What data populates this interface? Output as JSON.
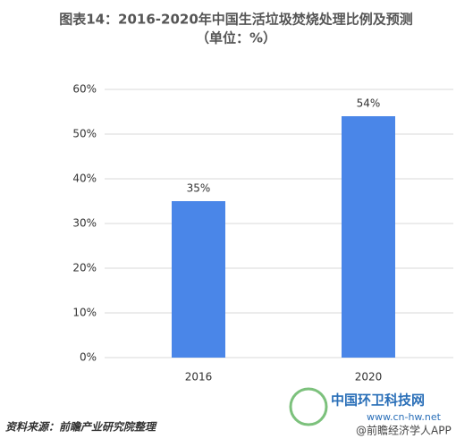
{
  "chart_data": {
    "type": "bar",
    "title": "图表14：2016-2020年中国生活垃圾焚烧处理比例及预测",
    "subtitle": "（单位：%）",
    "categories": [
      "2016",
      "2020"
    ],
    "values": [
      35,
      54
    ],
    "value_labels": [
      "35%",
      "54%"
    ],
    "color": "#4a86e8",
    "ylim": [
      0,
      60
    ],
    "yticks": [
      {
        "value": 0,
        "label": "0%"
      },
      {
        "value": 10,
        "label": "10%"
      },
      {
        "value": 20,
        "label": "20%"
      },
      {
        "value": 30,
        "label": "30%"
      },
      {
        "value": 40,
        "label": "40%"
      },
      {
        "value": 50,
        "label": "50%"
      },
      {
        "value": 60,
        "label": "60%"
      }
    ],
    "grid": true,
    "source": "资料来源：前瞻产业研究院整理",
    "annotations": [
      "中国环卫科技网",
      "www.cn-hw.net",
      "@前瞻经济学人APP"
    ]
  }
}
